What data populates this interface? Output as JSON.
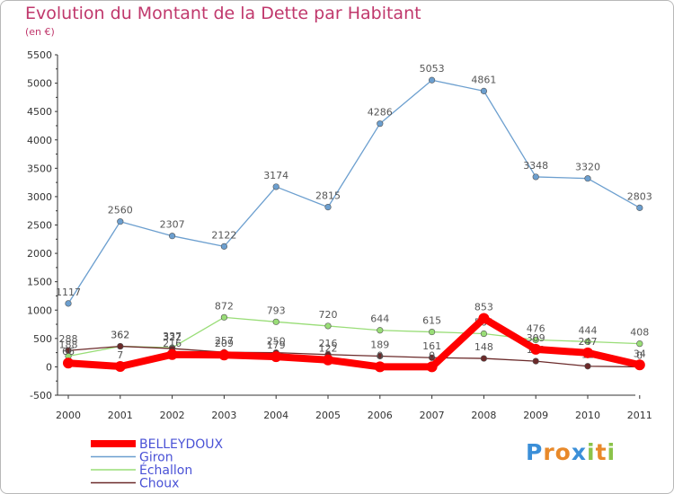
{
  "header": {
    "title": "Evolution du Montant de la Dette par Habitant",
    "subtitle": "(en €)"
  },
  "brand": {
    "letters": [
      "P",
      "r",
      "o",
      "x",
      "i",
      "t",
      "i"
    ],
    "colors": [
      "#3b8fd8",
      "#e8892a",
      "#e8892a",
      "#3b8fd8",
      "#8bc34a",
      "#e8892a",
      "#8bc34a"
    ]
  },
  "chart_data": {
    "type": "line",
    "title": "Evolution du Montant de la Dette par Habitant",
    "subtitle": "(en €)",
    "x": [
      "2000",
      "2001",
      "2002",
      "2003",
      "2004",
      "2005",
      "2006",
      "2007",
      "2008",
      "2009",
      "2010",
      "2011"
    ],
    "ylim": [
      -500,
      5500
    ],
    "yticks": [
      -500,
      0,
      500,
      1000,
      1500,
      2000,
      2500,
      3000,
      3500,
      4000,
      4500,
      5000,
      5500
    ],
    "grid": false,
    "legend_position": "bottom-left",
    "series": [
      {
        "name": "BELLEYDOUX",
        "color": "#ff0000",
        "values": [
          66,
          7,
          216,
          209,
          179,
          122,
          0,
          0,
          853,
          309,
          247,
          34
        ],
        "labels": [
          "66",
          "7",
          "216",
          "209",
          "179",
          "122",
          "0",
          "0",
          "853",
          "309",
          "247",
          "34"
        ]
      },
      {
        "name": "Giron",
        "color": "#6c9fcf",
        "values": [
          1117,
          2560,
          2307,
          2122,
          3174,
          2815,
          4286,
          5053,
          4861,
          3348,
          3320,
          2803
        ],
        "labels": [
          "1117",
          "2560",
          "2307",
          "2122",
          "3174",
          "2815",
          "4286",
          "5053",
          "4861",
          "3348",
          "3320",
          "2803"
        ]
      },
      {
        "name": "Échallon",
        "color": "#99dd77",
        "values": [
          188,
          362,
          337,
          872,
          793,
          720,
          644,
          615,
          584,
          476,
          444,
          408
        ],
        "labels": [
          "188",
          "362",
          "337",
          "872",
          "793",
          "720",
          "644",
          "615",
          "584",
          "476",
          "444",
          "408"
        ]
      },
      {
        "name": "Choux",
        "color": "#6b2a2a",
        "values": [
          288,
          362,
          322,
          257,
          250,
          216,
          189,
          161,
          148,
          100,
          11,
          0
        ],
        "labels": [
          "288",
          "362",
          "322",
          "257",
          "250",
          "216",
          "189",
          "161",
          "148",
          "100",
          "11",
          "0"
        ]
      }
    ]
  }
}
